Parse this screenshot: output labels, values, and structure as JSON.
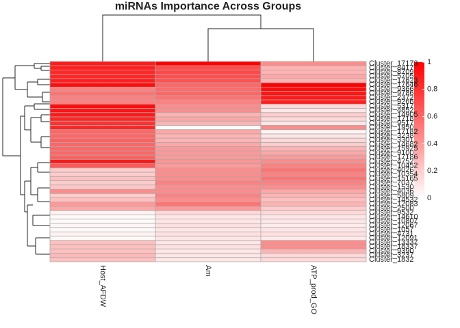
{
  "chart_data": {
    "type": "heatmap",
    "title": "miRNAs Importance Across Groups",
    "columns": [
      "Host_AFDW",
      "Am",
      "ATP_prod_GO"
    ],
    "rows": [
      "Cluster_17173",
      "Cluster_8417",
      "Cluster_8709",
      "Cluster_5705",
      "Cluster_17623",
      "Cluster_17646",
      "Cluster_9366",
      "Cluster_9786",
      "Cluster_2372",
      "Cluster_9266",
      "Cluster_5317",
      "Cluster_4852",
      "Cluster_14905",
      "Cluster_1718",
      "Cluster_9517",
      "Cluster_1950",
      "Cluster_17182",
      "Cluster_3238",
      "Cluster_3301",
      "Cluster_14682",
      "Cluster_15925",
      "Cluster_9100",
      "Cluster_17186",
      "Cluster_4752",
      "Cluster_10452",
      "Cluster_4026",
      "Cluster_10354",
      "Cluster_15165",
      "Cluster_7037",
      "Cluster_1530",
      "Cluster_4036",
      "Cluster_5809",
      "Cluster_14532",
      "Cluster_12083",
      "Cluster_2500",
      "Cluster_9532",
      "Cluster_14610",
      "Cluster_10807",
      "Cluster_12067",
      "Cluster_1057",
      "Cluster_4731",
      "Cluster_12091",
      "Cluster_13337",
      "Cluster_18337",
      "Cluster_9390",
      "Cluster_3237",
      "Cluster_1832"
    ],
    "values": [
      [
        0.9,
        1.0,
        0.45
      ],
      [
        0.88,
        0.7,
        0.3
      ],
      [
        0.85,
        0.72,
        0.3
      ],
      [
        0.85,
        0.7,
        0.35
      ],
      [
        0.88,
        0.68,
        0.3
      ],
      [
        0.95,
        0.6,
        1.0
      ],
      [
        0.5,
        0.58,
        0.95
      ],
      [
        0.55,
        0.6,
        0.92
      ],
      [
        0.5,
        0.55,
        0.9
      ],
      [
        0.5,
        0.5,
        0.88
      ],
      [
        0.95,
        0.45,
        0.15
      ],
      [
        0.92,
        0.45,
        0.1
      ],
      [
        0.9,
        0.3,
        0.2
      ],
      [
        0.85,
        0.35,
        0.15
      ],
      [
        0.8,
        0.3,
        0.1
      ],
      [
        0.85,
        0.02,
        0.45
      ],
      [
        0.6,
        0.35,
        0.05
      ],
      [
        0.6,
        0.3,
        0.1
      ],
      [
        0.62,
        0.3,
        0.15
      ],
      [
        0.6,
        0.35,
        0.2
      ],
      [
        0.6,
        0.4,
        0.3
      ],
      [
        0.6,
        0.4,
        0.35
      ],
      [
        0.62,
        0.4,
        0.4
      ],
      [
        0.9,
        0.42,
        0.45
      ],
      [
        0.65,
        0.4,
        0.5
      ],
      [
        0.2,
        0.45,
        0.55
      ],
      [
        0.2,
        0.45,
        0.5
      ],
      [
        0.25,
        0.45,
        0.55
      ],
      [
        0.2,
        0.5,
        0.5
      ],
      [
        0.22,
        0.45,
        0.45
      ],
      [
        0.45,
        0.45,
        0.35
      ],
      [
        0.2,
        0.5,
        0.3
      ],
      [
        0.25,
        0.45,
        0.25
      ],
      [
        0.4,
        0.55,
        0.3
      ],
      [
        0.35,
        0.4,
        0.2
      ],
      [
        0.05,
        0.15,
        0.15
      ],
      [
        0.02,
        0.1,
        0.1
      ],
      [
        0.02,
        0.1,
        0.1
      ],
      [
        0.03,
        0.12,
        0.08
      ],
      [
        0.02,
        0.1,
        0.1
      ],
      [
        0.05,
        0.12,
        0.12
      ],
      [
        0.02,
        0.1,
        0.08
      ],
      [
        0.25,
        0.1,
        0.45
      ],
      [
        0.25,
        0.12,
        0.45
      ],
      [
        0.25,
        0.1,
        0.3
      ],
      [
        0.28,
        0.1,
        0.15
      ],
      [
        0.25,
        0.1,
        0.15
      ]
    ],
    "colors": [
      "#ffffff",
      "#ff0000"
    ],
    "zlim": [
      0,
      1
    ],
    "zticks": [
      0,
      0.2,
      0.4,
      0.6,
      0.8,
      1
    ]
  }
}
